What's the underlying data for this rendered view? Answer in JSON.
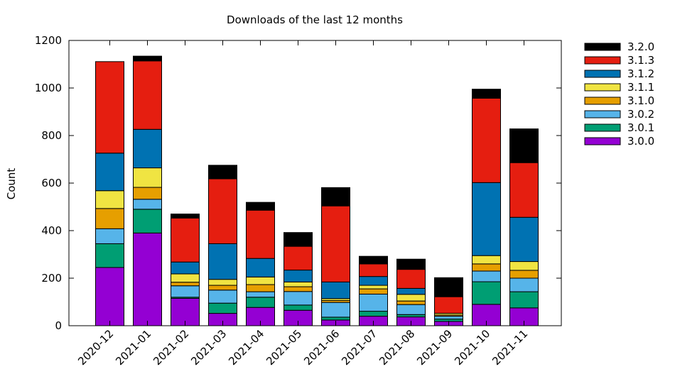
{
  "chart_data": {
    "type": "bar",
    "stacked": true,
    "title": "Downloads of the last 12 months",
    "xlabel": "",
    "ylabel": "Count",
    "ylim": [
      0,
      1200
    ],
    "yticks": [
      0,
      200,
      400,
      600,
      800,
      1000,
      1200
    ],
    "grid": false,
    "legend_position": "outside-right",
    "categories": [
      "2020-12",
      "2021-01",
      "2021-02",
      "2021-03",
      "2021-04",
      "2021-05",
      "2021-06",
      "2021-07",
      "2021-08",
      "2021-09",
      "2021-10",
      "2021-11"
    ],
    "series": [
      {
        "name": "3.0.0",
        "color": "#9400d3",
        "values": [
          245,
          390,
          115,
          52,
          77,
          65,
          24,
          40,
          37,
          18,
          90,
          75
        ]
      },
      {
        "name": "3.0.1",
        "color": "#009e73",
        "values": [
          100,
          100,
          5,
          43,
          43,
          22,
          12,
          21,
          10,
          10,
          95,
          68
        ]
      },
      {
        "name": "3.0.2",
        "color": "#56b4e9",
        "values": [
          63,
          42,
          48,
          55,
          23,
          57,
          62,
          72,
          42,
          12,
          45,
          57
        ]
      },
      {
        "name": "3.1.0",
        "color": "#e69f00",
        "values": [
          85,
          50,
          15,
          20,
          30,
          20,
          8,
          22,
          15,
          5,
          30,
          33
        ]
      },
      {
        "name": "3.1.1",
        "color": "#f0e442",
        "values": [
          75,
          82,
          35,
          25,
          32,
          20,
          8,
          15,
          28,
          7,
          35,
          37
        ]
      },
      {
        "name": "3.1.2",
        "color": "#0072b2",
        "values": [
          158,
          162,
          50,
          150,
          78,
          50,
          70,
          37,
          25,
          0,
          307,
          186
        ]
      },
      {
        "name": "3.1.3",
        "color": "#e51e10",
        "values": [
          385,
          288,
          185,
          273,
          203,
          100,
          320,
          53,
          80,
          70,
          355,
          230
        ]
      },
      {
        "name": "3.2.0",
        "color": "#000000",
        "values": [
          0,
          20,
          17,
          57,
          33,
          58,
          77,
          32,
          43,
          80,
          38,
          142
        ]
      }
    ]
  }
}
